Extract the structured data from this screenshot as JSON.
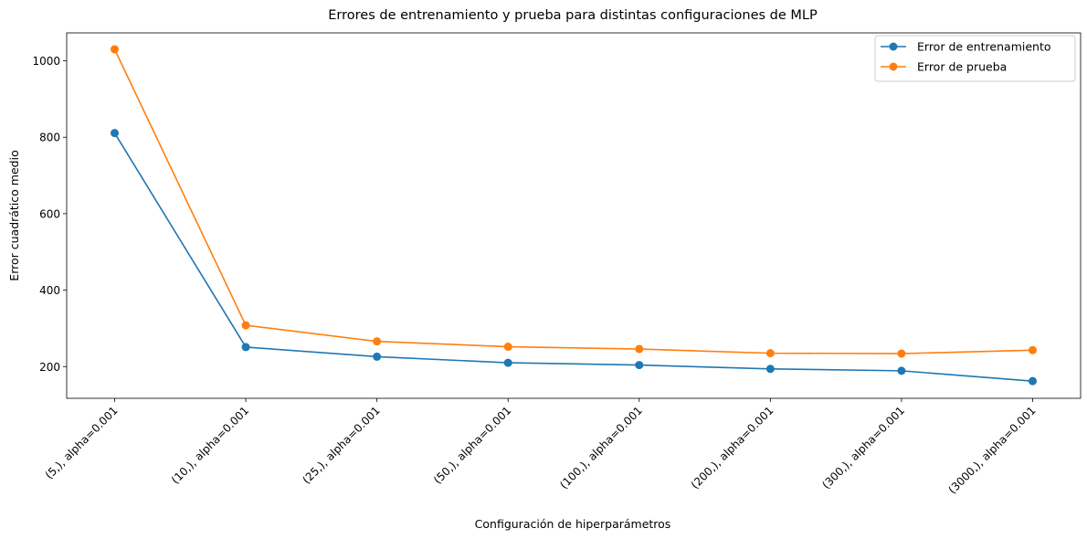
{
  "chart_data": {
    "type": "line",
    "title": "Errores de entrenamiento y prueba para distintas configuraciones de MLP",
    "xlabel": "Configuración de hiperparámetros",
    "ylabel": "Error cuadrático medio",
    "categories": [
      "(5,), alpha=0.001",
      "(10,), alpha=0.001",
      "(25,), alpha=0.001",
      "(50,), alpha=0.001",
      "(100,), alpha=0.001",
      "(200,), alpha=0.001",
      "(300,), alpha=0.001",
      "(3000,), alpha=0.001"
    ],
    "series": [
      {
        "name": "Error de entrenamiento",
        "color": "#1f77b4",
        "values": [
          811,
          251,
          226,
          210,
          204,
          194,
          189,
          162
        ]
      },
      {
        "name": "Error de prueba",
        "color": "#ff7f0e",
        "values": [
          1030,
          308,
          266,
          252,
          246,
          235,
          234,
          243
        ]
      }
    ],
    "yticks": [
      200,
      400,
      600,
      800,
      1000
    ],
    "ylim": [
      117,
      1073
    ],
    "grid": false,
    "legend_position": "top-right"
  }
}
